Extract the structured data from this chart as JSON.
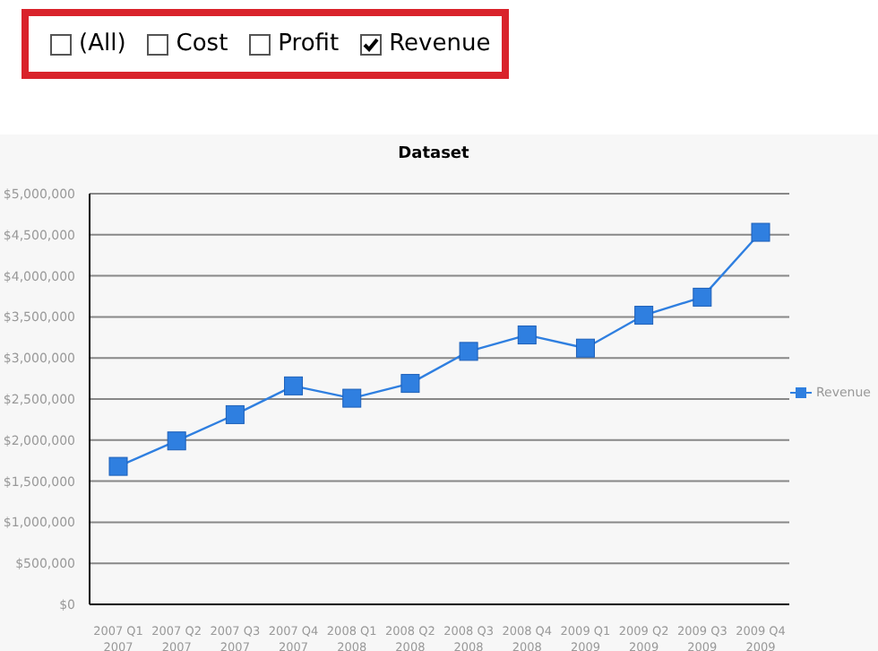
{
  "chart_data": {
    "type": "line",
    "title": "Dataset",
    "annotations": [
      "(All)",
      "Cost",
      "Profit",
      "Revenue"
    ],
    "categories": [
      "2007 Q1\n2007",
      "2007 Q2\n2007",
      "2007 Q3\n2007",
      "2007 Q4\n2007",
      "2008 Q1\n2008",
      "2008 Q2\n2008",
      "2008 Q3\n2008",
      "2008 Q4\n2008",
      "2009 Q1\n2009",
      "2009 Q2\n2009",
      "2009 Q3\n2009",
      "2009 Q4\n2009"
    ],
    "series": [
      {
        "name": "Revenue",
        "color": "#2f7fe0",
        "values": [
          1680000,
          1990000,
          2310000,
          2660000,
          2510000,
          2690000,
          3080000,
          3280000,
          3120000,
          3520000,
          3740000,
          4530000
        ]
      }
    ],
    "ylim": [
      0,
      5000000
    ],
    "yticks": [
      {
        "value": 0,
        "label": "$0"
      },
      {
        "value": 500000,
        "label": "$500,000"
      },
      {
        "value": 1000000,
        "label": "$1,000,000"
      },
      {
        "value": 1500000,
        "label": "$1,500,000"
      },
      {
        "value": 2000000,
        "label": "$2,000,000"
      },
      {
        "value": 2500000,
        "label": "$2,500,000"
      },
      {
        "value": 3000000,
        "label": "$3,000,000"
      },
      {
        "value": 3500000,
        "label": "$3,500,000"
      },
      {
        "value": 4000000,
        "label": "$4,000,000"
      },
      {
        "value": 4500000,
        "label": "$4,500,000"
      },
      {
        "value": 5000000,
        "label": "$5,000,000"
      }
    ],
    "grid": "y",
    "legend": "right",
    "marker": "square",
    "line_style": "solid"
  }
}
